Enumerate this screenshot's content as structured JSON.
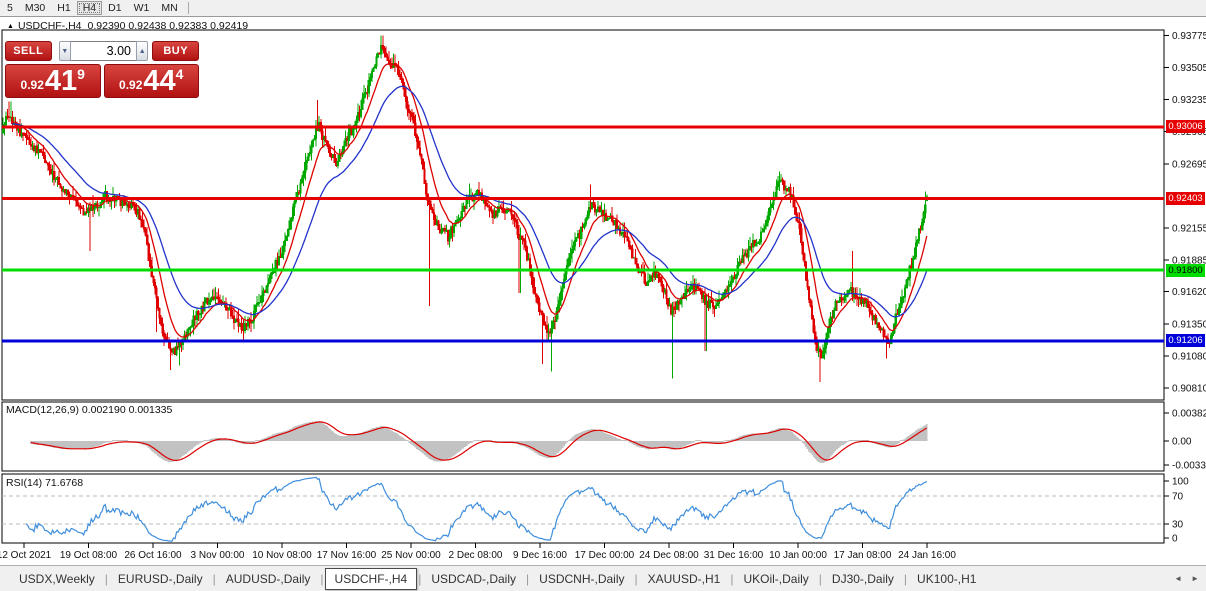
{
  "toolbar": {
    "timeframes": [
      "5",
      "M30",
      "H1",
      "H4",
      "D1",
      "W1",
      "MN"
    ],
    "active": "H4"
  },
  "chart": {
    "collapse_icon": "▲",
    "title": "USDCHF-,H4",
    "ohlc": "0.92390 0.92438 0.92383 0.92419"
  },
  "trade_panel": {
    "sell_label": "SELL",
    "buy_label": "BUY",
    "volume": "3.00",
    "down_arrow": "▼",
    "up_arrow": "▲",
    "sell_price_prefix": "0.92",
    "sell_price_big": "41",
    "sell_price_sup": "9",
    "buy_price_prefix": "0.92",
    "buy_price_big": "44",
    "buy_price_sup": "4"
  },
  "macd_panel": {
    "label": "MACD(12,26,9) 0.002190 0.001335"
  },
  "rsi_panel": {
    "label": "RSI(14) 71.6768"
  },
  "tabs": {
    "items": [
      "USDX,Weekly",
      "EURUSD-,Daily",
      "AUDUSD-,Daily",
      "USDCHF-,H4",
      "USDCAD-,Daily",
      "USDCNH-,Daily",
      "XAUUSD-,H1",
      "UKOil-,Daily",
      "DJ30-,Daily",
      "UK100-,H1"
    ],
    "active": "USDCHF-,H4",
    "scroll_left_icon": "◄",
    "scroll_right_icon": "►"
  },
  "colors": {
    "candle_up": "#00a800",
    "candle_down": "#e00000",
    "ma_fast": "#dd0000",
    "ma_slow": "#2233cc",
    "macd_hist": "#c2c2c2",
    "macd_signal": "#dd0000",
    "rsi_line": "#3f8edc",
    "level_dashed": "#bbbbbb",
    "axis_text": "#111111",
    "panel_border": "#000000"
  },
  "chart_data": {
    "type": "candlestick",
    "symbol": "USDCHF-",
    "timeframe": "H4",
    "last_ohlc": {
      "open": 0.9239,
      "high": 0.92438,
      "low": 0.92383,
      "close": 0.92419
    },
    "y_axis_ticks": [
      {
        "v": 0.93775,
        "label": "0.93775"
      },
      {
        "v": 0.93505,
        "label": "0.93505"
      },
      {
        "v": 0.93235,
        "label": "0.93235"
      },
      {
        "v": 0.92965,
        "label": "0.92965"
      },
      {
        "v": 0.92695,
        "label": "0.92695"
      },
      {
        "v": 0.92155,
        "label": "0.92155"
      },
      {
        "v": 0.91885,
        "label": "0.91885"
      },
      {
        "v": 0.9162,
        "label": "0.91620"
      },
      {
        "v": 0.9135,
        "label": "0.91350"
      },
      {
        "v": 0.9108,
        "label": "0.91080"
      },
      {
        "v": 0.9081,
        "label": "0.90810"
      }
    ],
    "x_labels": [
      "12 Oct 2021",
      "19 Oct 08:00",
      "26 Oct 16:00",
      "3 Nov 00:00",
      "10 Nov 08:00",
      "17 Nov 16:00",
      "25 Nov 00:00",
      "2 Dec 08:00",
      "9 Dec 16:00",
      "17 Dec 00:00",
      "24 Dec 08:00",
      "31 Dec 16:00",
      "10 Jan 00:00",
      "17 Jan 08:00",
      "24 Jan 16:00"
    ],
    "hlines": [
      {
        "price": 0.93006,
        "label": "0.93006",
        "color": "#e60000",
        "text_color": "#ffffff"
      },
      {
        "price": 0.92403,
        "label": "0.92403",
        "color": "#e60000",
        "text_color": "#ffffff"
      },
      {
        "price": 0.918,
        "label": "0.91800",
        "color": "#00dc00",
        "text_color": "#000000"
      },
      {
        "price": 0.91206,
        "label": "0.91206",
        "color": "#0000d8",
        "text_color": "#ffffff"
      }
    ],
    "price_path": [
      [
        0,
        0.9296
      ],
      [
        8,
        0.931
      ],
      [
        16,
        0.93
      ],
      [
        30,
        0.9288
      ],
      [
        45,
        0.9273
      ],
      [
        60,
        0.925
      ],
      [
        72,
        0.9241
      ],
      [
        85,
        0.9229
      ],
      [
        95,
        0.9233
      ],
      [
        105,
        0.9243
      ],
      [
        118,
        0.9239
      ],
      [
        130,
        0.9236
      ],
      [
        142,
        0.9223
      ],
      [
        152,
        0.9178
      ],
      [
        162,
        0.9128
      ],
      [
        172,
        0.911
      ],
      [
        182,
        0.9119
      ],
      [
        192,
        0.9136
      ],
      [
        202,
        0.9149
      ],
      [
        212,
        0.9158
      ],
      [
        222,
        0.9151
      ],
      [
        232,
        0.9143
      ],
      [
        242,
        0.9131
      ],
      [
        252,
        0.9141
      ],
      [
        262,
        0.9158
      ],
      [
        272,
        0.9178
      ],
      [
        282,
        0.9198
      ],
      [
        292,
        0.923
      ],
      [
        302,
        0.9257
      ],
      [
        312,
        0.9287
      ],
      [
        318,
        0.9303
      ],
      [
        326,
        0.9286
      ],
      [
        336,
        0.9269
      ],
      [
        346,
        0.9288
      ],
      [
        356,
        0.9305
      ],
      [
        366,
        0.9329
      ],
      [
        376,
        0.9358
      ],
      [
        382,
        0.937
      ],
      [
        390,
        0.9356
      ],
      [
        398,
        0.9347
      ],
      [
        406,
        0.9322
      ],
      [
        414,
        0.9301
      ],
      [
        422,
        0.9269
      ],
      [
        430,
        0.923
      ],
      [
        438,
        0.9216
      ],
      [
        448,
        0.9209
      ],
      [
        458,
        0.9221
      ],
      [
        468,
        0.9241
      ],
      [
        478,
        0.9245
      ],
      [
        486,
        0.9238
      ],
      [
        494,
        0.9226
      ],
      [
        502,
        0.9233
      ],
      [
        510,
        0.923
      ],
      [
        518,
        0.9213
      ],
      [
        526,
        0.9196
      ],
      [
        534,
        0.9166
      ],
      [
        542,
        0.9141
      ],
      [
        550,
        0.9126
      ],
      [
        558,
        0.9151
      ],
      [
        566,
        0.9181
      ],
      [
        574,
        0.92
      ],
      [
        582,
        0.9216
      ],
      [
        590,
        0.9236
      ],
      [
        598,
        0.9231
      ],
      [
        606,
        0.9226
      ],
      [
        614,
        0.9222
      ],
      [
        622,
        0.9211
      ],
      [
        630,
        0.9199
      ],
      [
        638,
        0.9181
      ],
      [
        646,
        0.9171
      ],
      [
        654,
        0.9179
      ],
      [
        662,
        0.9169
      ],
      [
        670,
        0.9146
      ],
      [
        678,
        0.9153
      ],
      [
        686,
        0.9163
      ],
      [
        694,
        0.9166
      ],
      [
        702,
        0.9159
      ],
      [
        710,
        0.9151
      ],
      [
        718,
        0.9153
      ],
      [
        726,
        0.9161
      ],
      [
        734,
        0.9173
      ],
      [
        742,
        0.9189
      ],
      [
        750,
        0.9199
      ],
      [
        758,
        0.9206
      ],
      [
        766,
        0.9219
      ],
      [
        774,
        0.9241
      ],
      [
        780,
        0.9257
      ],
      [
        786,
        0.925
      ],
      [
        792,
        0.9243
      ],
      [
        800,
        0.9211
      ],
      [
        808,
        0.9161
      ],
      [
        816,
        0.9117
      ],
      [
        822,
        0.9109
      ],
      [
        828,
        0.9131
      ],
      [
        836,
        0.9153
      ],
      [
        844,
        0.9159
      ],
      [
        852,
        0.9163
      ],
      [
        860,
        0.9156
      ],
      [
        868,
        0.9149
      ],
      [
        876,
        0.9136
      ],
      [
        884,
        0.9126
      ],
      [
        890,
        0.9119
      ],
      [
        896,
        0.9141
      ],
      [
        904,
        0.9163
      ],
      [
        910,
        0.9181
      ],
      [
        916,
        0.9201
      ],
      [
        922,
        0.9223
      ],
      [
        928,
        0.9242
      ]
    ],
    "wick_spikes": [
      {
        "x": 10,
        "type": "high",
        "price": 0.9322
      },
      {
        "x": 90,
        "type": "low",
        "price": 0.9196
      },
      {
        "x": 157,
        "type": "low",
        "price": 0.9128
      },
      {
        "x": 170,
        "type": "low",
        "price": 0.9096
      },
      {
        "x": 180,
        "type": "low",
        "price": 0.91
      },
      {
        "x": 318,
        "type": "high",
        "price": 0.9323
      },
      {
        "x": 382,
        "type": "high",
        "price": 0.93775
      },
      {
        "x": 398,
        "type": "high",
        "price": 0.9356
      },
      {
        "x": 429,
        "type": "low",
        "price": 0.915
      },
      {
        "x": 470,
        "type": "high",
        "price": 0.9253
      },
      {
        "x": 520,
        "type": "low",
        "price": 0.9161
      },
      {
        "x": 543,
        "type": "low",
        "price": 0.9101
      },
      {
        "x": 552,
        "type": "low",
        "price": 0.9095
      },
      {
        "x": 590,
        "type": "high",
        "price": 0.9252
      },
      {
        "x": 672,
        "type": "low",
        "price": 0.9089
      },
      {
        "x": 706,
        "type": "low",
        "price": 0.9112
      },
      {
        "x": 780,
        "type": "high",
        "price": 0.9263
      },
      {
        "x": 820,
        "type": "low",
        "price": 0.9086
      },
      {
        "x": 852,
        "type": "high",
        "price": 0.9196
      },
      {
        "x": 886,
        "type": "low",
        "price": 0.9106
      },
      {
        "x": 926,
        "type": "high",
        "price": 0.9246
      }
    ],
    "moving_averages": [
      {
        "name": "fast",
        "period": 13
      },
      {
        "name": "slow",
        "period": 36
      }
    ],
    "macd": {
      "params": "12,26,9",
      "last_main": 0.00219,
      "last_signal": 0.001335,
      "y_ticks": [
        {
          "v": 0.00382,
          "label": "0.00382"
        },
        {
          "v": 0,
          "label": "0.00"
        },
        {
          "v": -0.0033,
          "label": "-0.0033"
        }
      ]
    },
    "rsi": {
      "period": 14,
      "last": 71.6768,
      "levels": [
        70,
        30
      ],
      "y_ticks": [
        {
          "v": 100,
          "label": "100"
        },
        {
          "v": 70,
          "label": "70"
        },
        {
          "v": 30,
          "label": "30"
        },
        {
          "v": 0,
          "label": "0"
        }
      ]
    }
  }
}
